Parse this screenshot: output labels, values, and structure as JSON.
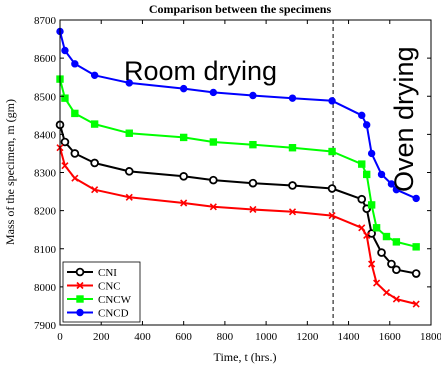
{
  "chart_data": {
    "type": "line",
    "title": "Comparison between the specimens",
    "xlabel": "Time,  t (hrs.)",
    "ylabel": "Mass of the specimen,  m (gm)",
    "xlim": [
      0,
      1800
    ],
    "ylim": [
      7900,
      8700
    ],
    "xticks": [
      0,
      200,
      400,
      600,
      800,
      1000,
      1200,
      1400,
      1600,
      1800
    ],
    "yticks": [
      7900,
      8000,
      8100,
      8200,
      8300,
      8400,
      8500,
      8600,
      8700
    ],
    "grid": false,
    "legend_position": "bottom-left",
    "annotations": [
      {
        "text": "Room drying"
      },
      {
        "text": "Oven drying"
      }
    ],
    "vline_x": 1325,
    "series": [
      {
        "name": "CNI",
        "color": "#000000",
        "marker": "circle-open",
        "x": [
          0,
          24,
          72,
          168,
          336,
          600,
          744,
          936,
          1128,
          1320,
          1464,
          1488,
          1512,
          1560,
          1608,
          1632,
          1728
        ],
        "y": [
          8425,
          8380,
          8350,
          8325,
          8303,
          8290,
          8280,
          8272,
          8266,
          8258,
          8230,
          8205,
          8140,
          8090,
          8060,
          8045,
          8035
        ]
      },
      {
        "name": "CNC",
        "color": "#ff0000",
        "marker": "x",
        "x": [
          0,
          24,
          72,
          168,
          336,
          600,
          744,
          936,
          1128,
          1320,
          1464,
          1488,
          1512,
          1536,
          1584,
          1632,
          1728
        ],
        "y": [
          8365,
          8318,
          8285,
          8255,
          8235,
          8220,
          8210,
          8203,
          8197,
          8187,
          8155,
          8135,
          8060,
          8010,
          7985,
          7968,
          7955
        ]
      },
      {
        "name": "CNCW",
        "color": "#00ff00",
        "marker": "square",
        "x": [
          0,
          24,
          72,
          168,
          336,
          600,
          744,
          936,
          1128,
          1320,
          1464,
          1488,
          1512,
          1536,
          1584,
          1632,
          1728
        ],
        "y": [
          8545,
          8495,
          8455,
          8427,
          8403,
          8392,
          8380,
          8373,
          8365,
          8355,
          8322,
          8295,
          8215,
          8155,
          8132,
          8118,
          8105
        ]
      },
      {
        "name": "CNCD",
        "color": "#0000ff",
        "marker": "circle",
        "x": [
          0,
          24,
          72,
          168,
          336,
          600,
          744,
          936,
          1128,
          1320,
          1464,
          1488,
          1512,
          1560,
          1608,
          1632,
          1728
        ],
        "y": [
          8670,
          8620,
          8585,
          8555,
          8535,
          8520,
          8510,
          8502,
          8495,
          8488,
          8450,
          8425,
          8350,
          8295,
          8270,
          8255,
          8232
        ]
      }
    ]
  }
}
